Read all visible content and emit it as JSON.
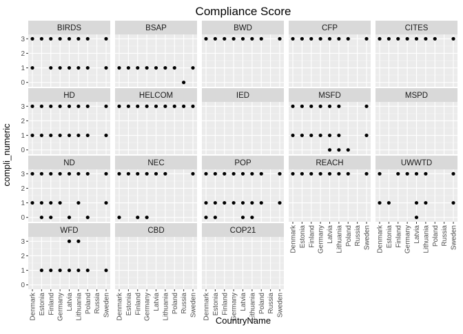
{
  "chart_data": {
    "type": "scatter",
    "title": "Compliance Score",
    "xlabel": "CountryName",
    "ylabel": "compli_numeric",
    "countries": [
      "Denmark",
      "Estonia",
      "Finland",
      "Germany",
      "Latvia",
      "Lithuania",
      "Poland",
      "Russia",
      "Sweden"
    ],
    "y_ticks": [
      0,
      1,
      2,
      3
    ],
    "ylim": [
      -0.3,
      3.3
    ],
    "grid": true,
    "facet_columns": 5,
    "facets": [
      {
        "name": "BIRDS",
        "points": [
          [
            0,
            3
          ],
          [
            1,
            3
          ],
          [
            2,
            3
          ],
          [
            3,
            3
          ],
          [
            4,
            3
          ],
          [
            5,
            3
          ],
          [
            6,
            3
          ],
          [
            8,
            3
          ],
          [
            0,
            1
          ],
          [
            2,
            1
          ],
          [
            3,
            1
          ],
          [
            4,
            1
          ],
          [
            5,
            1
          ],
          [
            6,
            1
          ],
          [
            8,
            1
          ]
        ]
      },
      {
        "name": "BSAP",
        "points": [
          [
            0,
            1
          ],
          [
            1,
            1
          ],
          [
            2,
            1
          ],
          [
            3,
            1
          ],
          [
            4,
            1
          ],
          [
            5,
            1
          ],
          [
            6,
            1
          ],
          [
            8,
            1
          ],
          [
            7,
            0
          ]
        ]
      },
      {
        "name": "BWD",
        "points": [
          [
            0,
            3
          ],
          [
            1,
            3
          ],
          [
            2,
            3
          ],
          [
            3,
            3
          ],
          [
            4,
            3
          ],
          [
            5,
            3
          ],
          [
            6,
            3
          ],
          [
            8,
            3
          ]
        ]
      },
      {
        "name": "CFP",
        "points": [
          [
            0,
            3
          ],
          [
            1,
            3
          ],
          [
            2,
            3
          ],
          [
            3,
            3
          ],
          [
            4,
            3
          ],
          [
            5,
            3
          ],
          [
            6,
            3
          ],
          [
            8,
            3
          ]
        ]
      },
      {
        "name": "CITES",
        "points": [
          [
            0,
            3
          ],
          [
            1,
            3
          ],
          [
            2,
            3
          ],
          [
            3,
            3
          ],
          [
            4,
            3
          ],
          [
            5,
            3
          ],
          [
            6,
            3
          ],
          [
            8,
            3
          ]
        ]
      },
      {
        "name": "HD",
        "points": [
          [
            0,
            3
          ],
          [
            1,
            3
          ],
          [
            2,
            3
          ],
          [
            3,
            3
          ],
          [
            4,
            3
          ],
          [
            5,
            3
          ],
          [
            6,
            3
          ],
          [
            8,
            3
          ],
          [
            0,
            1
          ],
          [
            1,
            1
          ],
          [
            2,
            1
          ],
          [
            3,
            1
          ],
          [
            4,
            1
          ],
          [
            5,
            1
          ],
          [
            6,
            1
          ],
          [
            8,
            1
          ]
        ]
      },
      {
        "name": "HELCOM",
        "points": [
          [
            0,
            3
          ],
          [
            1,
            3
          ],
          [
            2,
            3
          ],
          [
            3,
            3
          ],
          [
            4,
            3
          ],
          [
            5,
            3
          ],
          [
            6,
            3
          ],
          [
            7,
            3
          ],
          [
            8,
            3
          ]
        ]
      },
      {
        "name": "IED",
        "points": []
      },
      {
        "name": "MSFD",
        "points": [
          [
            0,
            3
          ],
          [
            1,
            3
          ],
          [
            2,
            3
          ],
          [
            3,
            3
          ],
          [
            4,
            3
          ],
          [
            5,
            3
          ],
          [
            8,
            3
          ],
          [
            0,
            1
          ],
          [
            1,
            1
          ],
          [
            2,
            1
          ],
          [
            3,
            1
          ],
          [
            4,
            1
          ],
          [
            5,
            1
          ],
          [
            8,
            1
          ],
          [
            4,
            0
          ],
          [
            5,
            0
          ],
          [
            6,
            0
          ]
        ]
      },
      {
        "name": "MSPD",
        "points": []
      },
      {
        "name": "ND",
        "points": [
          [
            0,
            3
          ],
          [
            1,
            3
          ],
          [
            2,
            3
          ],
          [
            3,
            3
          ],
          [
            4,
            3
          ],
          [
            5,
            3
          ],
          [
            6,
            3
          ],
          [
            8,
            3
          ],
          [
            0,
            1
          ],
          [
            1,
            1
          ],
          [
            2,
            1
          ],
          [
            3,
            1
          ],
          [
            5,
            1
          ],
          [
            8,
            1
          ],
          [
            1,
            0
          ],
          [
            2,
            0
          ],
          [
            4,
            0
          ],
          [
            6,
            0
          ]
        ]
      },
      {
        "name": "NEC",
        "points": [
          [
            0,
            3
          ],
          [
            1,
            3
          ],
          [
            2,
            3
          ],
          [
            3,
            3
          ],
          [
            4,
            3
          ],
          [
            5,
            3
          ],
          [
            8,
            3
          ],
          [
            0,
            0
          ],
          [
            2,
            0
          ],
          [
            3,
            0
          ]
        ]
      },
      {
        "name": "POP",
        "points": [
          [
            0,
            3
          ],
          [
            1,
            3
          ],
          [
            2,
            3
          ],
          [
            3,
            3
          ],
          [
            4,
            3
          ],
          [
            5,
            3
          ],
          [
            6,
            3
          ],
          [
            8,
            3
          ],
          [
            0,
            1
          ],
          [
            1,
            1
          ],
          [
            2,
            1
          ],
          [
            3,
            1
          ],
          [
            4,
            1
          ],
          [
            5,
            1
          ],
          [
            6,
            1
          ],
          [
            8,
            1
          ],
          [
            0,
            0
          ],
          [
            1,
            0
          ],
          [
            4,
            0
          ],
          [
            5,
            0
          ]
        ]
      },
      {
        "name": "REACH",
        "points": [
          [
            0,
            3
          ],
          [
            1,
            3
          ],
          [
            2,
            3
          ],
          [
            3,
            3
          ],
          [
            4,
            3
          ],
          [
            5,
            3
          ],
          [
            6,
            3
          ],
          [
            8,
            3
          ]
        ]
      },
      {
        "name": "UWWTD",
        "points": [
          [
            0,
            3
          ],
          [
            2,
            3
          ],
          [
            3,
            3
          ],
          [
            4,
            3
          ],
          [
            5,
            3
          ],
          [
            8,
            3
          ],
          [
            0,
            1
          ],
          [
            1,
            1
          ],
          [
            4,
            1
          ],
          [
            5,
            1
          ],
          [
            8,
            1
          ],
          [
            4,
            0
          ]
        ]
      },
      {
        "name": "WFD",
        "points": [
          [
            4,
            3
          ],
          [
            5,
            3
          ],
          [
            1,
            1
          ],
          [
            2,
            1
          ],
          [
            3,
            1
          ],
          [
            4,
            1
          ],
          [
            5,
            1
          ],
          [
            6,
            1
          ],
          [
            8,
            1
          ]
        ]
      },
      {
        "name": "CBD",
        "points": []
      },
      {
        "name": "COP21",
        "points": []
      }
    ]
  }
}
